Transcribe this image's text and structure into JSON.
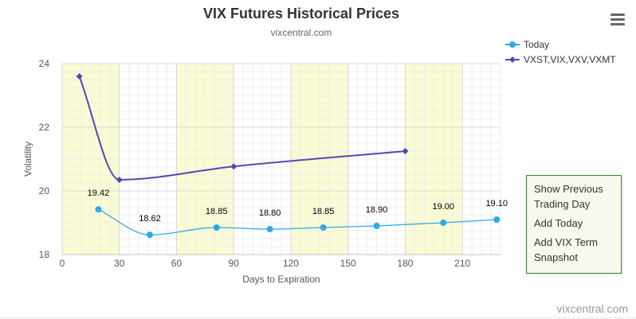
{
  "title": "VIX Futures Historical Prices",
  "subtitle": "vixcentral.com",
  "credits": "vixcentral.com",
  "legend": [
    {
      "label": "Today",
      "color": "#2fa8e8",
      "marker": "circle"
    },
    {
      "label": "VXST,VIX,VXV,VXMT",
      "color": "#5547b3",
      "marker": "diamond"
    }
  ],
  "context_menu": [
    {
      "label": "Show Previous Trading Day"
    },
    {
      "label": "Add Today"
    },
    {
      "label": "Add VIX Term Snapshot"
    }
  ],
  "chart_data": {
    "type": "line",
    "xlabel": "Days to Expiration",
    "ylabel": "Volatility",
    "xlim": [
      0,
      230
    ],
    "ylim": [
      18,
      24
    ],
    "xticks": [
      0,
      30,
      60,
      90,
      120,
      150,
      180,
      210
    ],
    "yticks": [
      18,
      20,
      22,
      24
    ],
    "grid": true,
    "shaded_bands": [
      [
        0,
        30
      ],
      [
        60,
        90
      ],
      [
        120,
        150
      ],
      [
        180,
        210
      ]
    ],
    "band_color": "#fbfbd2",
    "legend_position": "top-right",
    "series": [
      {
        "name": "Today",
        "color": "#2fa8e8",
        "marker": "circle",
        "data_labels": true,
        "points": [
          {
            "x": 19,
            "y": 19.42
          },
          {
            "x": 46,
            "y": 18.62
          },
          {
            "x": 81,
            "y": 18.85
          },
          {
            "x": 109,
            "y": 18.8
          },
          {
            "x": 137,
            "y": 18.85
          },
          {
            "x": 165,
            "y": 18.9
          },
          {
            "x": 200,
            "y": 19.0
          },
          {
            "x": 228,
            "y": 19.1
          }
        ]
      },
      {
        "name": "VXST,VIX,VXV,VXMT",
        "color": "#5547b3",
        "marker": "diamond",
        "data_labels": false,
        "points": [
          {
            "x": 9,
            "y": 23.6
          },
          {
            "x": 30,
            "y": 20.35
          },
          {
            "x": 90,
            "y": 20.77
          },
          {
            "x": 180,
            "y": 21.25
          }
        ]
      }
    ]
  }
}
